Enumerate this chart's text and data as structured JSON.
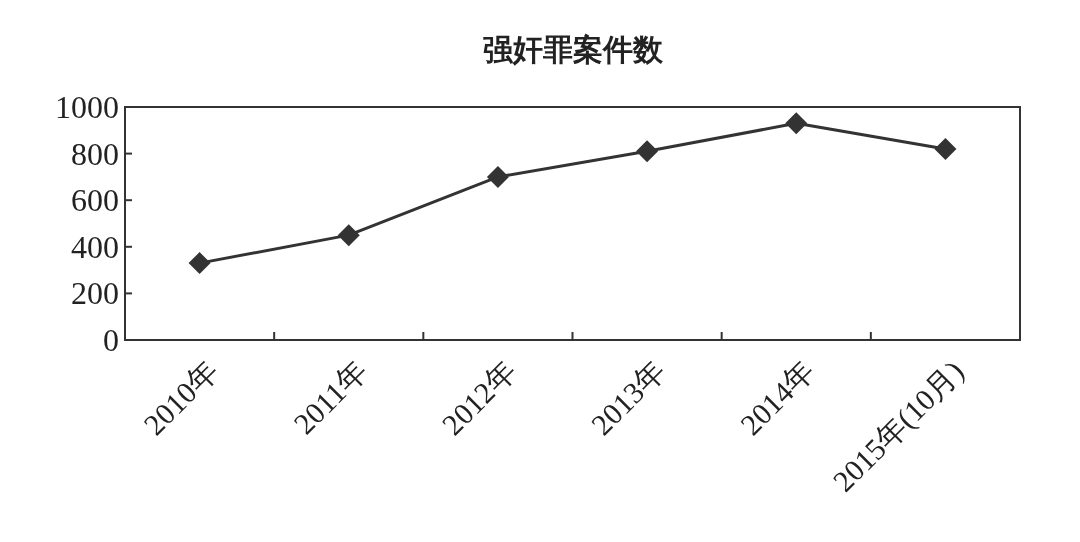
{
  "chart_data": {
    "type": "line",
    "title": "强奸罪案件数",
    "categories": [
      "2010年",
      "2011年",
      "2012年",
      "2013年",
      "2014年",
      "2015年(10月)"
    ],
    "values": [
      330,
      450,
      700,
      810,
      930,
      820
    ],
    "color": "#333333",
    "marker": "diamond",
    "ylim": [
      0,
      1000
    ],
    "yticks": [
      0,
      200,
      400,
      600,
      800,
      1000
    ]
  }
}
